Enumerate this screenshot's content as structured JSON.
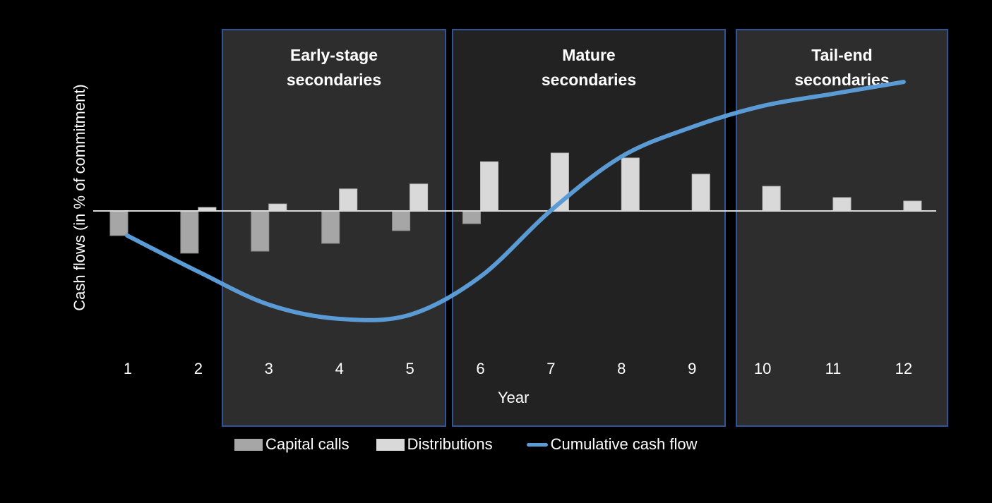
{
  "chart_data": {
    "type": "bar",
    "title": "",
    "xlabel": "Year",
    "ylabel": "Cash flows (in % of commitment)",
    "y_ticks_shown": false,
    "categories": [
      "1",
      "2",
      "3",
      "4",
      "5",
      "6",
      "7",
      "8",
      "9",
      "10",
      "11",
      "12"
    ],
    "series": [
      {
        "name": "Capital calls",
        "type": "bar",
        "color": "#a6a6a6",
        "values": [
          -8.5,
          -14.6,
          -13.9,
          -11.2,
          -6.8,
          -4.4,
          0,
          0,
          0,
          0,
          0,
          0
        ]
      },
      {
        "name": "Distributions",
        "type": "bar",
        "color": "#d9d9d9",
        "values": [
          0,
          1.2,
          2.4,
          7.6,
          9.3,
          17.0,
          20.0,
          18.3,
          12.7,
          8.5,
          4.6,
          3.4
        ]
      },
      {
        "name": "Cumulative cash flow",
        "type": "line",
        "color": "#5b9bd5",
        "values": [
          -8.5,
          -21.0,
          -32.4,
          -37.3,
          -35.9,
          -22.7,
          0.2,
          18.8,
          29.0,
          36.3,
          40.5,
          44.6
        ]
      }
    ],
    "units_note": "relative units (no y-axis tick labels shown)",
    "legend_position": "bottom",
    "grid": false,
    "annotations": [
      {
        "label": "Early-stage secondaries",
        "years": [
          3,
          5
        ]
      },
      {
        "label": "Mature secondaries",
        "years": [
          6,
          9
        ]
      },
      {
        "label": "Tail-end secondaries",
        "years": [
          10,
          12
        ]
      }
    ]
  },
  "phases": [
    {
      "line1": "Early-stage",
      "line2": "secondaries"
    },
    {
      "line1": "Mature",
      "line2": "secondaries"
    },
    {
      "line1": "Tail-end",
      "line2": "secondaries"
    }
  ],
  "axis": {
    "ylabel": "Cash flows (in % of commitment)",
    "xlabel": "Year",
    "xticks": [
      "1",
      "2",
      "3",
      "4",
      "5",
      "6",
      "7",
      "8",
      "9",
      "10",
      "11",
      "12"
    ]
  },
  "legend": {
    "capital_calls": "Capital calls",
    "distributions": "Distributions",
    "cumulative": "Cumulative cash flow"
  },
  "colors": {
    "background": "#000000",
    "box_light": "#2d2d2d",
    "box_dark": "#222222",
    "box_border": "#2f5597",
    "capital_calls": "#a6a6a6",
    "distributions": "#d9d9d9",
    "line": "#5b9bd5",
    "axis": "#d9d9d9"
  }
}
